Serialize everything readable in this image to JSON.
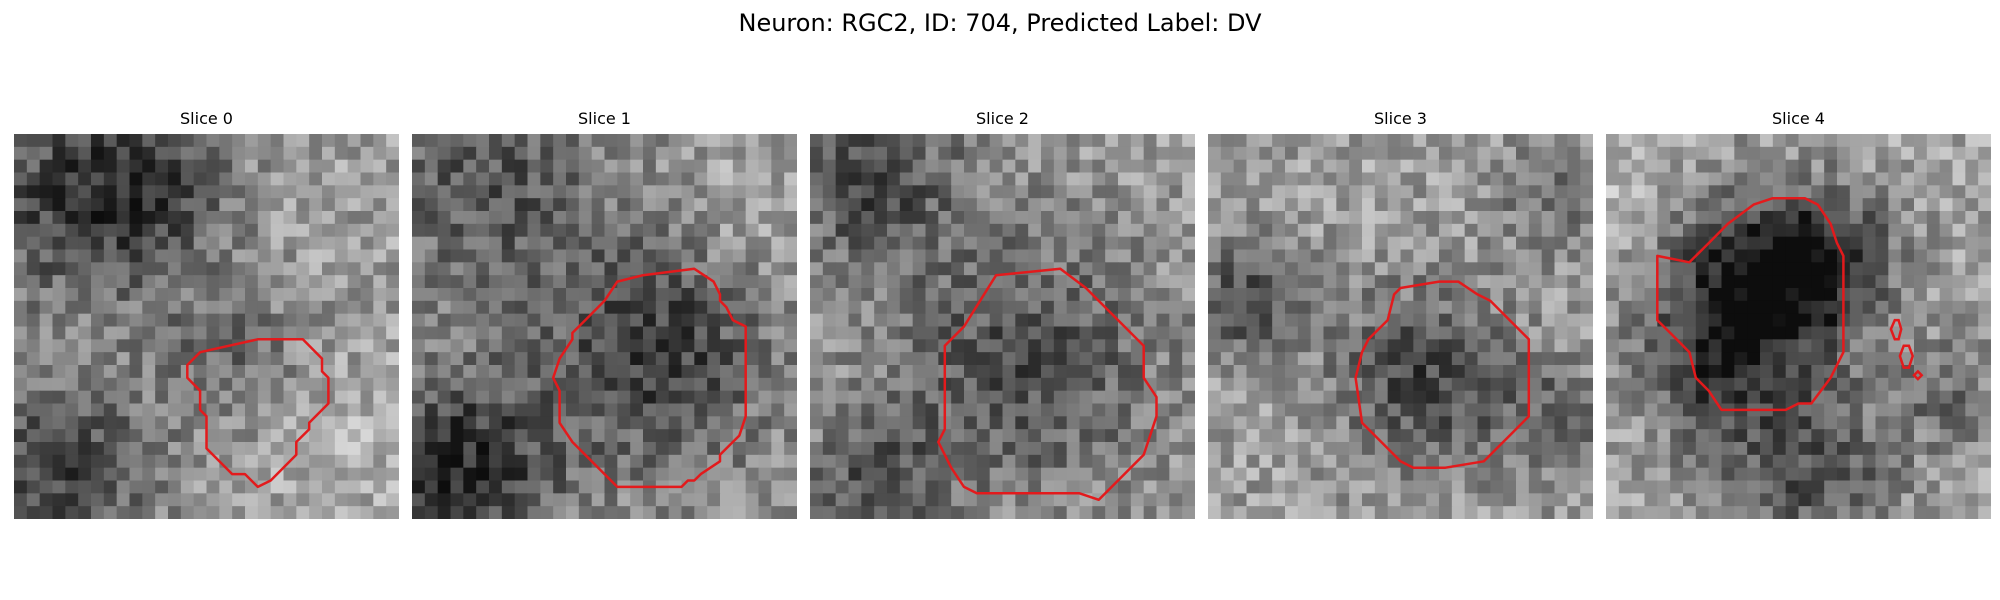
{
  "figure": {
    "title": "Neuron: RGC2, ID: 704, Predicted Label: DV"
  },
  "panels": [
    {
      "title": "Slice 0"
    },
    {
      "title": "Slice 1"
    },
    {
      "title": "Slice 2"
    },
    {
      "title": "Slice 3"
    },
    {
      "title": "Slice 4"
    }
  ],
  "colors": {
    "contour": "#e31a1c"
  }
}
